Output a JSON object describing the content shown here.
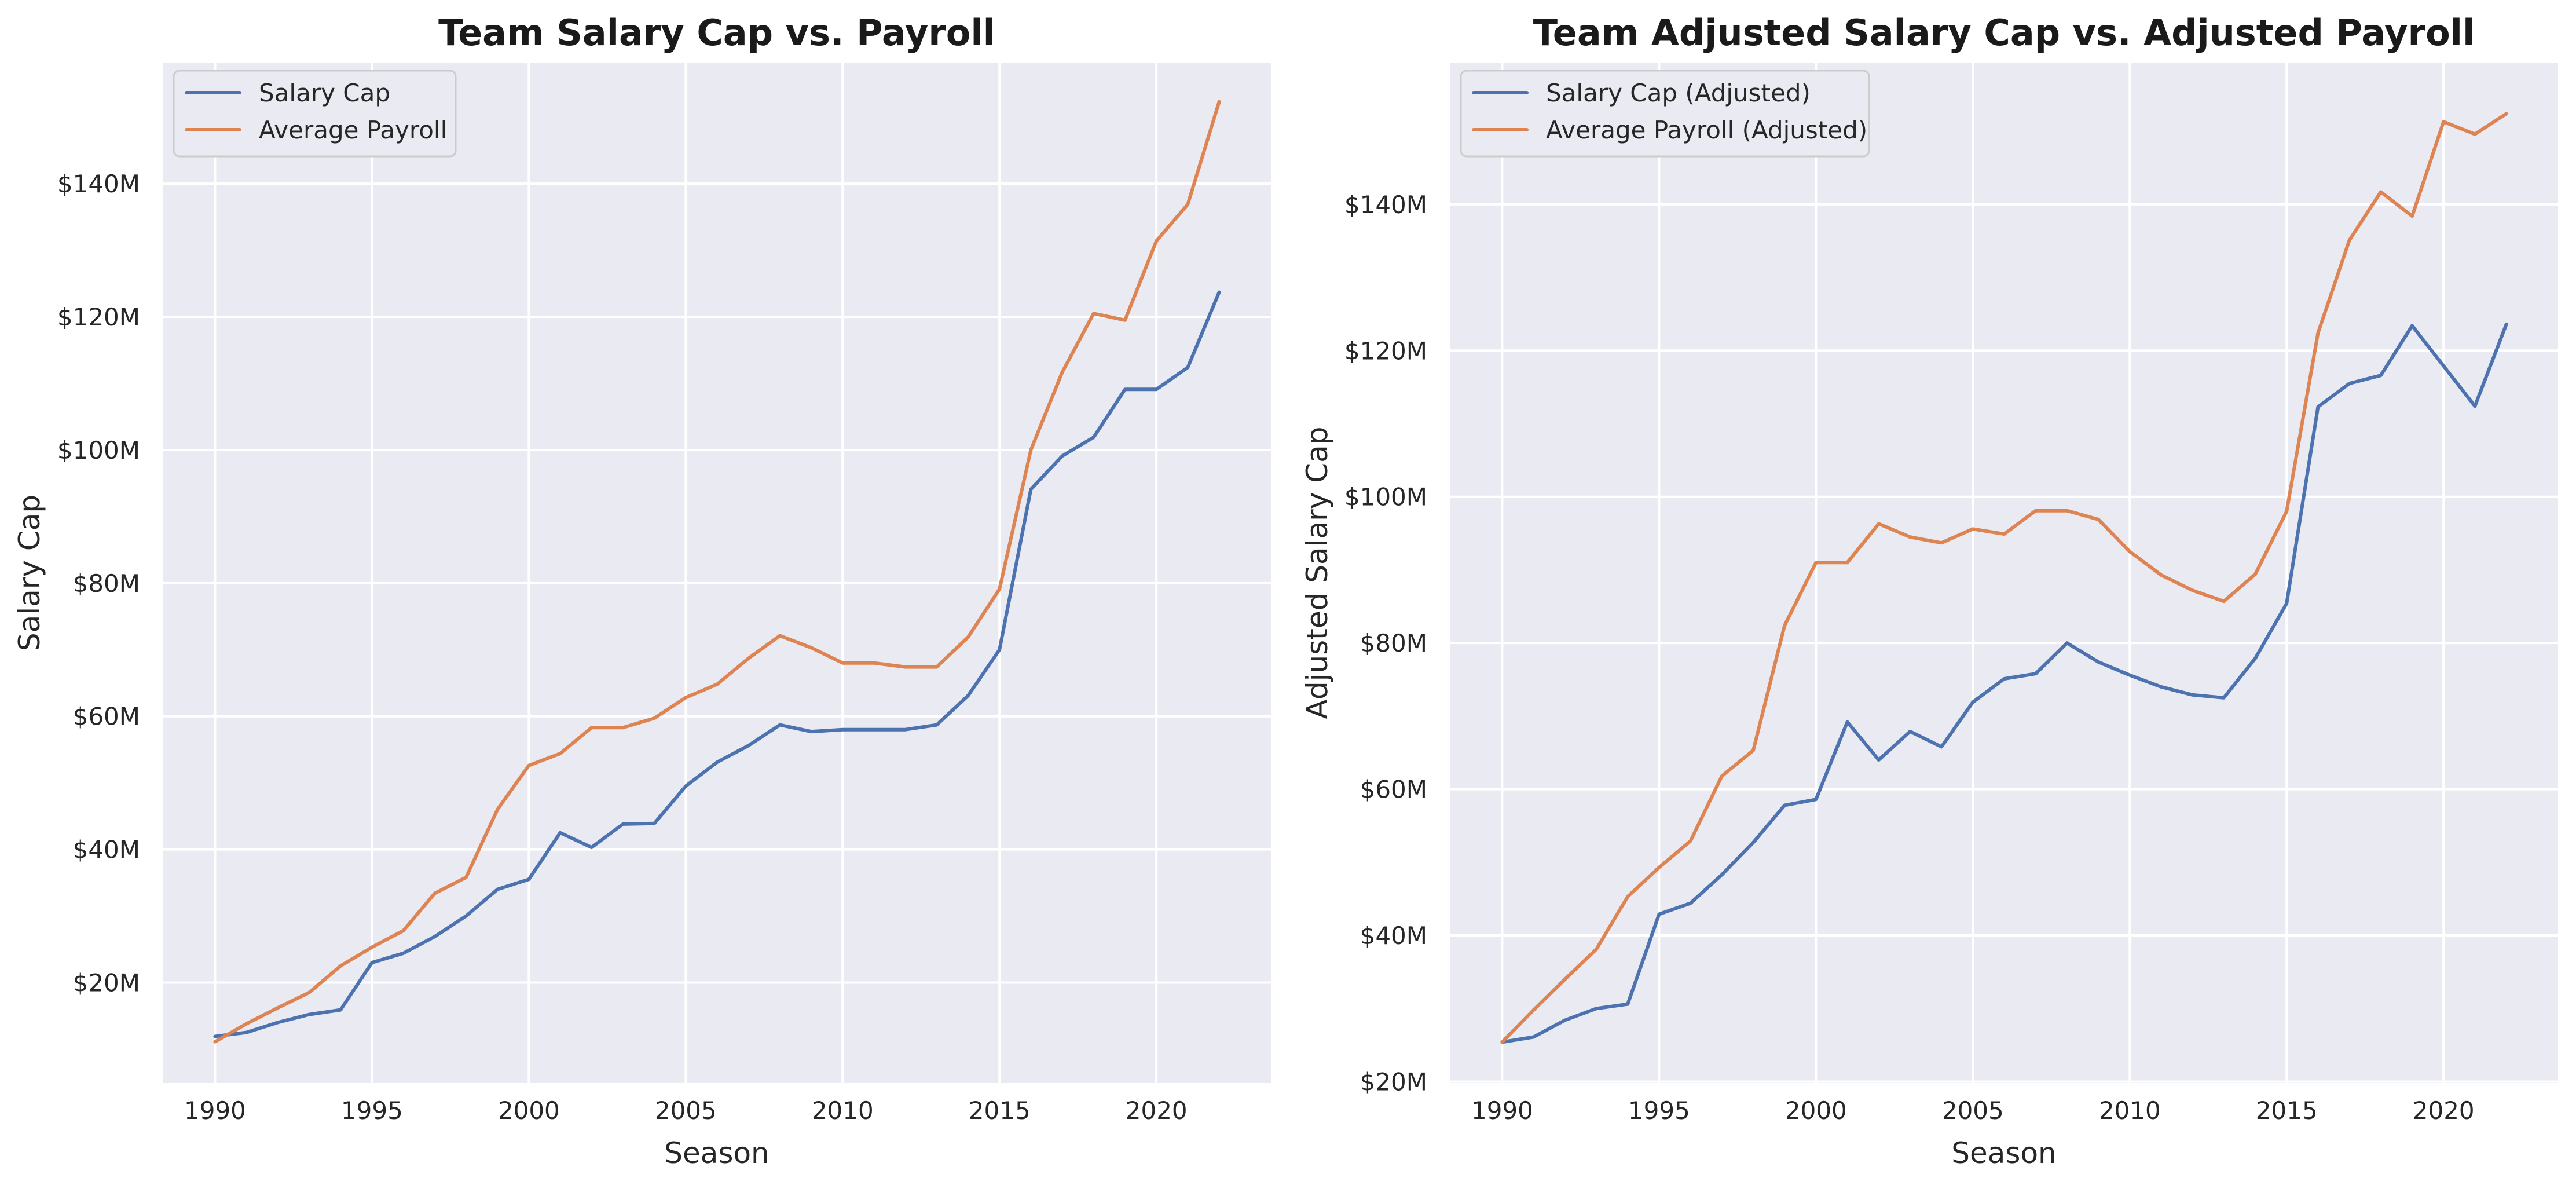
{
  "chart_data": [
    {
      "type": "line",
      "title": "Team Salary Cap vs. Payroll",
      "xlabel": "Season",
      "ylabel": "Salary Cap",
      "xlim": [
        1988.35,
        2023.65
      ],
      "ylim": [
        4.9,
        158.2
      ],
      "x_ticks": [
        1990,
        1995,
        2000,
        2005,
        2010,
        2015,
        2020
      ],
      "x_tick_labels": [
        "1990",
        "1995",
        "2000",
        "2005",
        "2010",
        "2015",
        "2020"
      ],
      "y_ticks": [
        20,
        40,
        60,
        80,
        100,
        120,
        140
      ],
      "y_tick_labels": [
        "$20M",
        "$40M",
        "$60M",
        "$80M",
        "$100M",
        "$120M",
        "$140M"
      ],
      "grid": true,
      "legend_position": "top-left",
      "x": [
        1990,
        1991,
        1992,
        1993,
        1994,
        1995,
        1996,
        1997,
        1998,
        1999,
        2000,
        2001,
        2002,
        2003,
        2004,
        2005,
        2006,
        2007,
        2008,
        2009,
        2010,
        2011,
        2012,
        2013,
        2014,
        2015,
        2016,
        2017,
        2018,
        2019,
        2020,
        2021,
        2022
      ],
      "series": [
        {
          "name": "Salary Cap",
          "color": "#4c72b0",
          "values": [
            11.9,
            12.5,
            14.0,
            15.2,
            15.9,
            23.0,
            24.4,
            26.9,
            30.0,
            34.0,
            35.5,
            42.5,
            40.3,
            43.8,
            43.9,
            49.5,
            53.1,
            55.6,
            58.7,
            57.7,
            58.0,
            58.0,
            58.0,
            58.7,
            63.1,
            70.0,
            94.1,
            99.1,
            101.9,
            109.1,
            109.1,
            112.4,
            123.7
          ]
        },
        {
          "name": "Average Payroll",
          "color": "#dd8452",
          "values": [
            11.1,
            13.8,
            16.2,
            18.5,
            22.5,
            25.3,
            27.8,
            33.4,
            35.8,
            46.0,
            52.6,
            54.4,
            58.3,
            58.3,
            59.7,
            62.8,
            64.8,
            68.7,
            72.1,
            70.3,
            68.0,
            68.0,
            67.4,
            67.4,
            71.9,
            79.1,
            100.0,
            111.7,
            120.5,
            119.5,
            131.4,
            136.9,
            152.3
          ]
        }
      ]
    },
    {
      "type": "line",
      "title": "Team Adjusted Salary Cap vs. Adjusted Payroll",
      "xlabel": "Season",
      "ylabel": "Adjusted Salary Cap",
      "xlim": [
        1988.35,
        2023.65
      ],
      "ylim": [
        19.8,
        159.4
      ],
      "x_ticks": [
        1990,
        1995,
        2000,
        2005,
        2010,
        2015,
        2020
      ],
      "x_tick_labels": [
        "1990",
        "1995",
        "2000",
        "2005",
        "2010",
        "2015",
        "2020"
      ],
      "y_ticks": [
        20,
        40,
        60,
        80,
        100,
        120,
        140
      ],
      "y_tick_labels": [
        "$20M",
        "$40M",
        "$60M",
        "$80M",
        "$100M",
        "$120M",
        "$140M"
      ],
      "grid": true,
      "legend_position": "top-left",
      "x": [
        1990,
        1991,
        1992,
        1993,
        1994,
        1995,
        1996,
        1997,
        1998,
        1999,
        2000,
        2001,
        2002,
        2003,
        2004,
        2005,
        2006,
        2007,
        2008,
        2009,
        2010,
        2011,
        2012,
        2013,
        2014,
        2015,
        2016,
        2017,
        2018,
        2019,
        2020,
        2021,
        2022
      ],
      "series": [
        {
          "name": "Salary Cap (Adjusted)",
          "color": "#4c72b0",
          "values": [
            25.4,
            26.1,
            28.4,
            30.0,
            30.6,
            42.9,
            44.4,
            48.3,
            52.7,
            57.8,
            58.6,
            69.2,
            64.0,
            67.9,
            65.8,
            71.9,
            75.1,
            75.8,
            80.0,
            77.4,
            75.6,
            74.0,
            72.9,
            72.5,
            77.9,
            85.4,
            112.3,
            115.5,
            116.6,
            123.4,
            117.9,
            112.4,
            123.6
          ]
        },
        {
          "name": "Average Payroll (Adjusted)",
          "color": "#dd8452",
          "values": [
            25.4,
            29.8,
            34.0,
            38.1,
            45.3,
            49.3,
            52.9,
            61.8,
            65.3,
            82.4,
            91.0,
            91.0,
            96.3,
            94.5,
            93.7,
            95.6,
            94.9,
            98.1,
            98.1,
            96.9,
            92.5,
            89.3,
            87.2,
            85.7,
            89.4,
            98.0,
            122.4,
            135.1,
            141.7,
            138.4,
            151.3,
            149.6,
            152.4
          ]
        }
      ]
    }
  ]
}
